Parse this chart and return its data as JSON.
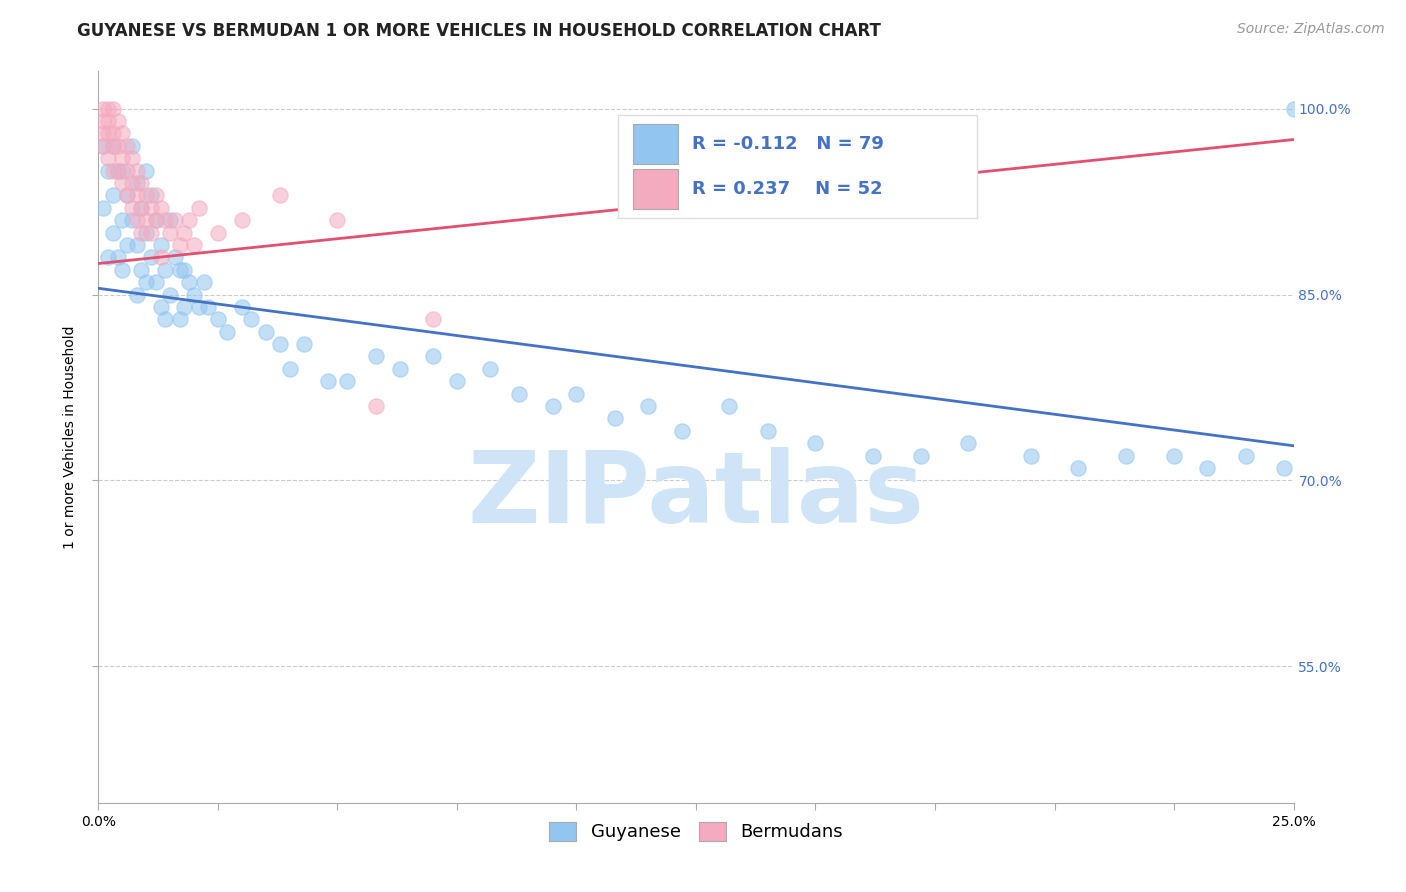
{
  "title": "GUYANESE VS BERMUDAN 1 OR MORE VEHICLES IN HOUSEHOLD CORRELATION CHART",
  "source": "Source: ZipAtlas.com",
  "ylabel": "1 or more Vehicles in Household",
  "xmin": 0.0,
  "xmax": 0.25,
  "ymin": 0.44,
  "ymax": 1.03,
  "xticks": [
    0.0,
    0.025,
    0.05,
    0.075,
    0.1,
    0.125,
    0.15,
    0.175,
    0.2,
    0.225,
    0.25
  ],
  "xticklabels_show": [
    "0.0%",
    "",
    "",
    "",
    "",
    "",
    "",
    "",
    "",
    "",
    "25.0%"
  ],
  "yticks": [
    0.55,
    0.7,
    0.85,
    1.0
  ],
  "yticklabels": [
    "55.0%",
    "70.0%",
    "85.0%",
    "100.0%"
  ],
  "watermark": "ZIPatlas",
  "legend_R_blue": "-0.112",
  "legend_N_blue": "79",
  "legend_R_pink": "0.237",
  "legend_N_pink": "52",
  "blue_scatter_x": [
    0.001,
    0.001,
    0.002,
    0.002,
    0.003,
    0.003,
    0.003,
    0.004,
    0.004,
    0.005,
    0.005,
    0.005,
    0.006,
    0.006,
    0.007,
    0.007,
    0.008,
    0.008,
    0.008,
    0.009,
    0.009,
    0.01,
    0.01,
    0.01,
    0.011,
    0.011,
    0.012,
    0.012,
    0.013,
    0.013,
    0.014,
    0.014,
    0.015,
    0.015,
    0.016,
    0.017,
    0.017,
    0.018,
    0.018,
    0.019,
    0.02,
    0.021,
    0.022,
    0.023,
    0.025,
    0.027,
    0.03,
    0.032,
    0.035,
    0.038,
    0.04,
    0.043,
    0.048,
    0.052,
    0.058,
    0.063,
    0.07,
    0.075,
    0.082,
    0.088,
    0.095,
    0.1,
    0.108,
    0.115,
    0.122,
    0.132,
    0.14,
    0.15,
    0.162,
    0.172,
    0.182,
    0.195,
    0.205,
    0.215,
    0.225,
    0.232,
    0.24,
    0.248,
    0.25
  ],
  "blue_scatter_y": [
    0.97,
    0.92,
    0.95,
    0.88,
    0.97,
    0.93,
    0.9,
    0.95,
    0.88,
    0.95,
    0.91,
    0.87,
    0.93,
    0.89,
    0.97,
    0.91,
    0.94,
    0.89,
    0.85,
    0.92,
    0.87,
    0.95,
    0.9,
    0.86,
    0.93,
    0.88,
    0.91,
    0.86,
    0.89,
    0.84,
    0.87,
    0.83,
    0.91,
    0.85,
    0.88,
    0.87,
    0.83,
    0.87,
    0.84,
    0.86,
    0.85,
    0.84,
    0.86,
    0.84,
    0.83,
    0.82,
    0.84,
    0.83,
    0.82,
    0.81,
    0.79,
    0.81,
    0.78,
    0.78,
    0.8,
    0.79,
    0.8,
    0.78,
    0.79,
    0.77,
    0.76,
    0.77,
    0.75,
    0.76,
    0.74,
    0.76,
    0.74,
    0.73,
    0.72,
    0.72,
    0.73,
    0.72,
    0.71,
    0.72,
    0.72,
    0.71,
    0.72,
    0.71,
    1.0
  ],
  "pink_scatter_x": [
    0.001,
    0.001,
    0.001,
    0.001,
    0.002,
    0.002,
    0.002,
    0.002,
    0.003,
    0.003,
    0.003,
    0.003,
    0.004,
    0.004,
    0.004,
    0.005,
    0.005,
    0.005,
    0.006,
    0.006,
    0.006,
    0.007,
    0.007,
    0.007,
    0.008,
    0.008,
    0.008,
    0.009,
    0.009,
    0.009,
    0.01,
    0.01,
    0.011,
    0.011,
    0.012,
    0.012,
    0.013,
    0.013,
    0.014,
    0.015,
    0.016,
    0.017,
    0.018,
    0.019,
    0.02,
    0.021,
    0.025,
    0.03,
    0.038,
    0.05,
    0.058,
    0.07
  ],
  "pink_scatter_y": [
    1.0,
    0.99,
    0.98,
    0.97,
    1.0,
    0.99,
    0.98,
    0.96,
    1.0,
    0.98,
    0.97,
    0.95,
    0.99,
    0.97,
    0.95,
    0.98,
    0.96,
    0.94,
    0.97,
    0.95,
    0.93,
    0.96,
    0.94,
    0.92,
    0.95,
    0.93,
    0.91,
    0.94,
    0.92,
    0.9,
    0.93,
    0.91,
    0.92,
    0.9,
    0.93,
    0.91,
    0.92,
    0.88,
    0.91,
    0.9,
    0.91,
    0.89,
    0.9,
    0.91,
    0.89,
    0.92,
    0.9,
    0.91,
    0.93,
    0.91,
    0.76,
    0.83
  ],
  "blue_line_x": [
    0.0,
    0.25
  ],
  "blue_line_y": [
    0.855,
    0.728
  ],
  "pink_line_x": [
    0.0,
    0.25
  ],
  "pink_line_y": [
    0.875,
    0.975
  ],
  "scatter_size": 120,
  "scatter_alpha": 0.55,
  "scatter_linewidths": 1.0,
  "blue_scatter_color": "#92C5F0",
  "blue_scatter_edge": "#92C5F0",
  "pink_scatter_color": "#F4AABF",
  "pink_scatter_edge": "#F4AABF",
  "blue_line_color": "#4472C4",
  "pink_line_color": "#E05070",
  "title_fontsize": 12,
  "axis_label_fontsize": 10,
  "tick_fontsize": 10,
  "legend_fontsize": 13,
  "watermark_color": "#D0E4F7",
  "watermark_fontsize": 72,
  "background_color": "#FFFFFF",
  "grid_color": "#CCCCCC",
  "right_tick_color": "#4472C4",
  "source_fontsize": 10,
  "legend_label_blue": "Guyanese",
  "legend_label_pink": "Bermudans"
}
